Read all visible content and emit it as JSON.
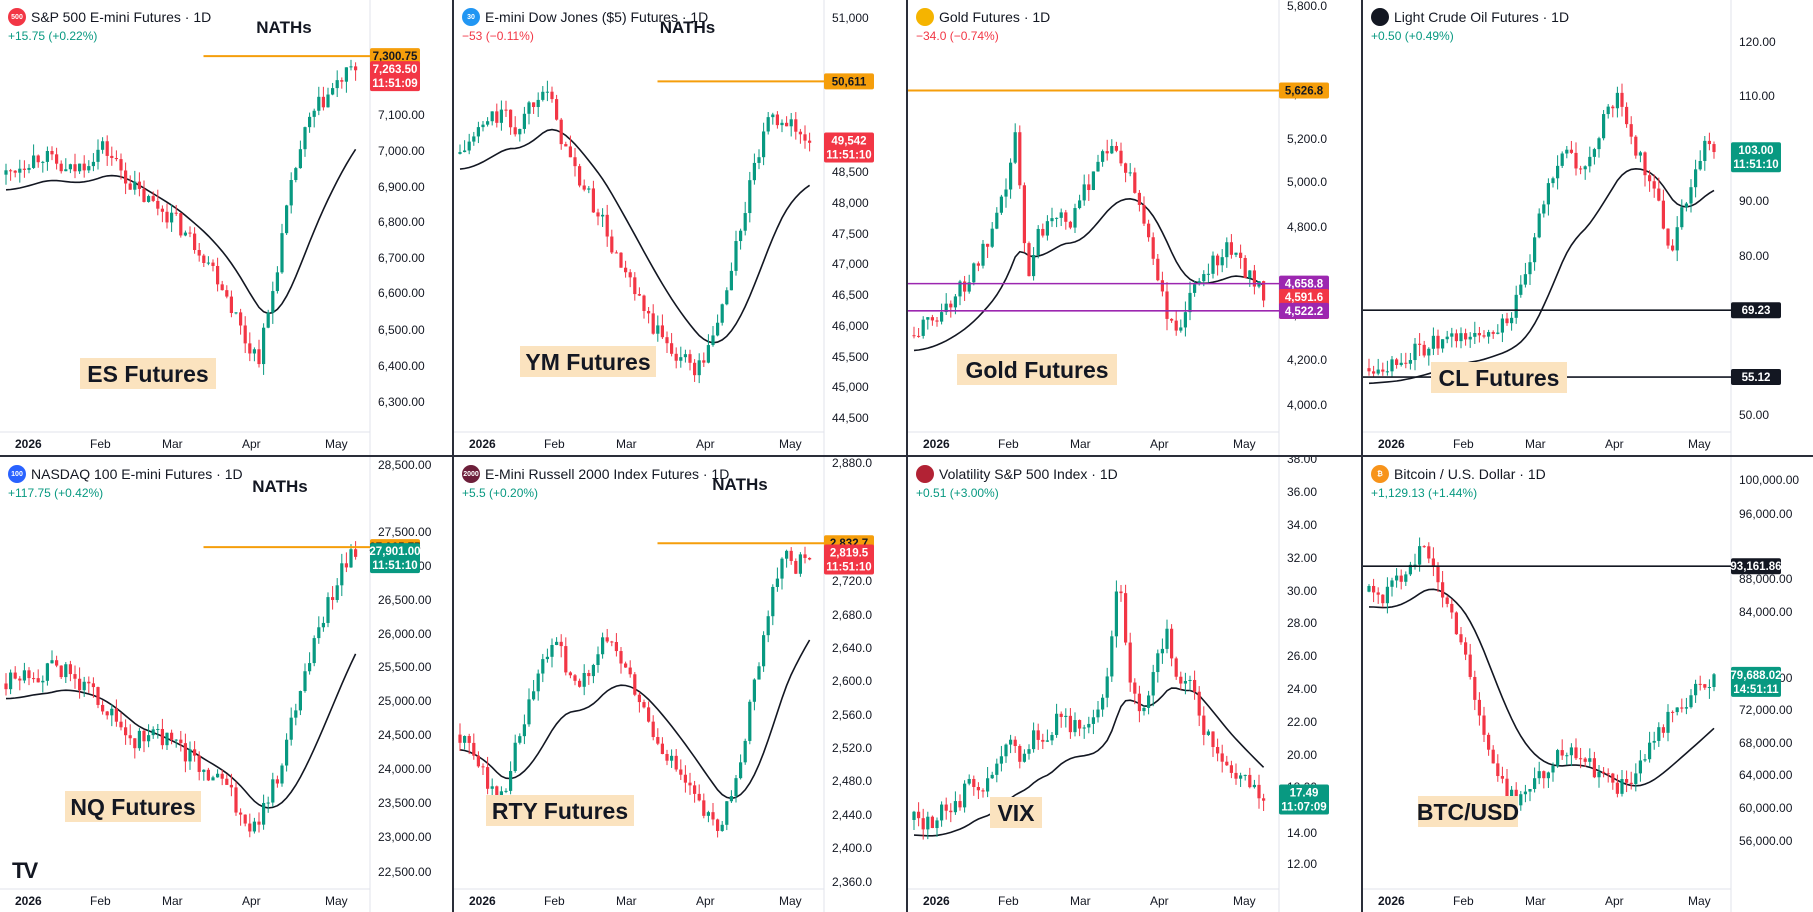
{
  "brand": {
    "logo_text": "TV"
  },
  "colors": {
    "up": "#089981",
    "down": "#f23645",
    "orange": "#f59e0b",
    "purple": "#9c27b0",
    "blue": "#2962ff",
    "label_bg": "#fbe3bf"
  },
  "panes": [
    {
      "id": "es",
      "title": "S&P 500 E-mini Futures · 1D",
      "logo": {
        "text": "500",
        "color": "#f23645",
        "icon": "sp500-logo"
      },
      "change": "+15.75 (+0.22%)",
      "change_dir": "up",
      "watermark": "ES Futures",
      "annotation": "NATHs",
      "x_labels": [
        "2026",
        "Feb",
        "Mar",
        "Apr",
        "May"
      ],
      "y_labels": [
        "7,100.00",
        "7,000.00",
        "6,900.00",
        "6,800.00",
        "6,700.00",
        "6,600.00",
        "6,500.00",
        "6,400.00",
        "6,300.00"
      ],
      "price_tags": [
        {
          "text": "7,300.75",
          "kind": "orange"
        },
        {
          "text": "7,263.50",
          "sub": "11:51:09",
          "kind": "down"
        }
      ]
    },
    {
      "id": "ym",
      "title": "E-mini Dow Jones ($5) Futures · 1D",
      "logo": {
        "text": "30",
        "color": "#2196f3",
        "icon": "dow-logo"
      },
      "change": "−53 (−0.11%)",
      "change_dir": "down",
      "watermark": "YM Futures",
      "annotation": "NATHs",
      "x_labels": [
        "2026",
        "Feb",
        "Mar",
        "Apr",
        "May"
      ],
      "y_labels": [
        "51,000",
        "50,000",
        "49,000",
        "48,500",
        "48,000",
        "47,500",
        "47,000",
        "46,500",
        "46,000",
        "45,500",
        "45,000",
        "44,500"
      ],
      "price_tags": [
        {
          "text": "50,611",
          "kind": "orange"
        },
        {
          "text": "49,542",
          "sub": "11:51:10",
          "kind": "down"
        }
      ]
    },
    {
      "id": "gc",
      "title": "Gold Futures · 1D",
      "logo": {
        "text": "",
        "color": "#f5b400",
        "icon": "gold-bars-logo"
      },
      "change": "−34.0 (−0.74%)",
      "change_dir": "down",
      "watermark": "Gold Futures",
      "annotation": "",
      "x_labels": [
        "2026",
        "Feb",
        "Mar",
        "Apr",
        "May"
      ],
      "y_labels": [
        "5,800.0",
        "5,400.0",
        "5,200.0",
        "5,000.0",
        "4,800.0",
        "4,400.0",
        "4,200.0",
        "4,000.0"
      ],
      "price_tags": [
        {
          "text": "5,626.8",
          "kind": "orange"
        },
        {
          "text": "4,658.8",
          "kind": "purple"
        },
        {
          "text": "4,591.6",
          "sub": "11:51:10",
          "kind": "down"
        },
        {
          "text": "4,522.2",
          "kind": "purple"
        }
      ]
    },
    {
      "id": "cl",
      "title": "Light Crude Oil Futures · 1D",
      "logo": {
        "text": "",
        "color": "#131722",
        "icon": "oil-drop-logo"
      },
      "change": "+0.50 (+0.49%)",
      "change_dir": "up",
      "watermark": "CL Futures",
      "annotation": "",
      "x_labels": [
        "2026",
        "Feb",
        "Mar",
        "Apr",
        "May"
      ],
      "y_labels": [
        "120.00",
        "110.00",
        "90.00",
        "80.00",
        "50.00"
      ],
      "price_tags": [
        {
          "text": "103.00",
          "sub": "11:51:10",
          "kind": "up"
        },
        {
          "text": "69.23",
          "kind": "black"
        },
        {
          "text": "55.12",
          "kind": "black"
        }
      ]
    },
    {
      "id": "nq",
      "title": "NASDAQ 100 E-mini Futures · 1D",
      "logo": {
        "text": "100",
        "color": "#2962ff",
        "icon": "nasdaq-logo"
      },
      "change": "+117.75 (+0.42%)",
      "change_dir": "up",
      "watermark": "NQ Futures",
      "annotation": "NATHs",
      "x_labels": [
        "2026",
        "Feb",
        "Mar",
        "Apr",
        "May"
      ],
      "y_labels": [
        "28,500.00",
        "27,500.00",
        "27,000.00",
        "26,500.00",
        "26,000.00",
        "25,500.00",
        "25,000.00",
        "24,500.00",
        "24,000.00",
        "23,500.00",
        "23,000.00",
        "22,500.00"
      ],
      "price_tags": [
        {
          "text": "27,965.75",
          "kind": "orange"
        },
        {
          "text": "27,901.00",
          "sub": "11:51:10",
          "kind": "up"
        }
      ]
    },
    {
      "id": "rty",
      "title": "E-Mini Russell 2000 Index Futures · 1D",
      "logo": {
        "text": "2000",
        "color": "#6d1f3a",
        "icon": "russell-logo"
      },
      "change": "+5.5 (+0.20%)",
      "change_dir": "up",
      "watermark": "RTY Futures",
      "annotation": "NATHs",
      "x_labels": [
        "2026",
        "Feb",
        "Mar",
        "Apr",
        "May"
      ],
      "y_labels": [
        "2,880.0",
        "2,760.0",
        "2,720.0",
        "2,680.0",
        "2,640.0",
        "2,600.0",
        "2,560.0",
        "2,520.0",
        "2,480.0",
        "2,440.0",
        "2,400.0",
        "2,360.0"
      ],
      "price_tags": [
        {
          "text": "2,832.7",
          "kind": "orange"
        },
        {
          "text": "2,819.5",
          "sub": "11:51:10",
          "kind": "down"
        }
      ]
    },
    {
      "id": "vix",
      "title": "Volatility S&P 500 Index · 1D",
      "logo": {
        "text": "",
        "color": "#b22234",
        "icon": "us-flag-logo"
      },
      "change": "+0.51 (+3.00%)",
      "change_dir": "up",
      "watermark": "VIX",
      "annotation": "",
      "x_labels": [
        "2026",
        "Feb",
        "Mar",
        "Apr",
        "May"
      ],
      "y_labels": [
        "38.00",
        "36.00",
        "34.00",
        "32.00",
        "30.00",
        "28.00",
        "26.00",
        "24.00",
        "22.00",
        "20.00",
        "18.00",
        "14.00",
        "12.00"
      ],
      "price_tags": [
        {
          "text": "17.49",
          "sub": "11:07:09",
          "kind": "up"
        }
      ]
    },
    {
      "id": "btc",
      "title": "Bitcoin / U.S. Dollar · 1D",
      "logo": {
        "text": "₿",
        "color": "#f7931a",
        "icon": "bitcoin-logo"
      },
      "change": "+1,129.13 (+1.44%)",
      "change_dir": "up",
      "watermark": "BTC/USD",
      "annotation": "",
      "x_labels": [
        "2026",
        "Feb",
        "Mar",
        "Apr",
        "May"
      ],
      "y_labels": [
        "100,000.00",
        "96,000.00",
        "88,000.00",
        "84,000.00",
        "76,000.00",
        "72,000.00",
        "68,000.00",
        "64,000.00",
        "60,000.00",
        "56,000.00"
      ],
      "price_tags": [
        {
          "text": "93,161.86",
          "kind": "black"
        },
        {
          "text": "79,688.02",
          "sub": "14:51:11",
          "kind": "up"
        }
      ]
    }
  ],
  "chart_data": [
    {
      "type": "line",
      "pane": "es",
      "ylim": [
        6240,
        7330
      ],
      "series": [
        {
          "values": [
            6960,
            6985,
            7005,
            7020,
            6990,
            6965,
            6980,
            7010,
            7040,
            7000,
            6950,
            6905,
            6880,
            6860,
            6830,
            6785,
            6750,
            6700,
            6640,
            6560,
            6470,
            6440,
            6600,
            6800,
            6980,
            7100,
            7160,
            7200,
            7240,
            7263.5
          ]
        }
      ],
      "levels": [
        {
          "value": 7300.75,
          "role": "NATHs"
        }
      ]
    },
    {
      "type": "line",
      "pane": "ym",
      "ylim": [
        44400,
        51250
      ],
      "series": [
        {
          "values": [
            49300,
            49600,
            49900,
            50050,
            49700,
            50200,
            50611,
            49800,
            49100,
            48600,
            48200,
            47500,
            47000,
            46500,
            46100,
            45800,
            45600,
            45400,
            45900,
            46800,
            47900,
            49000,
            49800,
            50000,
            49700,
            49542
          ]
        }
      ],
      "levels": [
        {
          "value": 50611,
          "role": "NATHs"
        }
      ]
    },
    {
      "type": "line",
      "pane": "gc",
      "ylim": [
        3950,
        5850
      ],
      "series": [
        {
          "values": [
            4400,
            4450,
            4500,
            4560,
            4620,
            4700,
            4800,
            4900,
            5100,
            5400,
            4700,
            4900,
            5000,
            5050,
            4950,
            5100,
            5250,
            5350,
            5300,
            5200,
            5050,
            4850,
            4600,
            4400,
            4500,
            4650,
            4750,
            4800,
            4850,
            4750,
            4700,
            4591.6
          ]
        }
      ],
      "levels": [
        {
          "value": 5626.8
        },
        {
          "value": 4658.8
        },
        {
          "value": 4522.2
        }
      ]
    },
    {
      "type": "line",
      "pane": "cl",
      "ylim": [
        45,
        125
      ],
      "series": [
        {
          "values": [
            57,
            58,
            58,
            59,
            60,
            61,
            62,
            62,
            63,
            64,
            63,
            65,
            66,
            68,
            72,
            80,
            90,
            98,
            104,
            100,
            98,
            105,
            110,
            114,
            108,
            102,
            98,
            90,
            82,
            90,
            97,
            104,
            103
          ]
        }
      ],
      "levels": [
        {
          "value": 69.23
        },
        {
          "value": 55.12
        }
      ]
    },
    {
      "type": "line",
      "pane": "nq",
      "ylim": [
        22400,
        28700
      ],
      "series": [
        {
          "values": [
            25700,
            25800,
            25900,
            25850,
            26000,
            25800,
            25650,
            25500,
            25200,
            24900,
            24700,
            24900,
            24800,
            24650,
            24500,
            24300,
            24200,
            24000,
            23600,
            23200,
            23600,
            24200,
            25000,
            25800,
            26500,
            27100,
            27600,
            27901
          ]
        }
      ],
      "levels": [
        {
          "value": 27965.75,
          "role": "NATHs"
        }
      ]
    },
    {
      "type": "line",
      "pane": "rty",
      "ylim": [
        2350,
        2890
      ],
      "series": [
        {
          "values": [
            2560,
            2530,
            2500,
            2460,
            2520,
            2580,
            2640,
            2690,
            2670,
            2620,
            2650,
            2700,
            2680,
            2640,
            2600,
            2560,
            2530,
            2500,
            2470,
            2440,
            2420,
            2480,
            2560,
            2660,
            2760,
            2820,
            2800,
            2819.5
          ]
        }
      ],
      "levels": [
        {
          "value": 2832.7,
          "role": "NATHs"
        }
      ]
    },
    {
      "type": "line",
      "pane": "vix",
      "ylim": [
        11,
        38.5
      ],
      "series": [
        {
          "values": [
            15.5,
            15.2,
            15.8,
            16.5,
            17.2,
            18.5,
            17.8,
            19.5,
            21,
            20,
            22,
            21,
            23.5,
            22.5,
            21.5,
            22.5,
            26,
            34,
            25,
            23,
            27,
            29.5,
            25,
            26,
            22,
            20.5,
            19.5,
            19,
            18.2,
            17.49
          ]
        }
      ]
    },
    {
      "type": "line",
      "pane": "btc",
      "ylim": [
        54000,
        101000
      ],
      "series": [
        {
          "values": [
            90000,
            89500,
            91000,
            93500,
            95500,
            92000,
            88000,
            84000,
            77000,
            70000,
            66000,
            64500,
            65500,
            67000,
            69000,
            71000,
            70000,
            68000,
            66500,
            65500,
            67000,
            70000,
            73000,
            75000,
            76500,
            78000,
            79688.02
          ]
        }
      ],
      "levels": [
        {
          "value": 93161.86
        }
      ]
    }
  ]
}
